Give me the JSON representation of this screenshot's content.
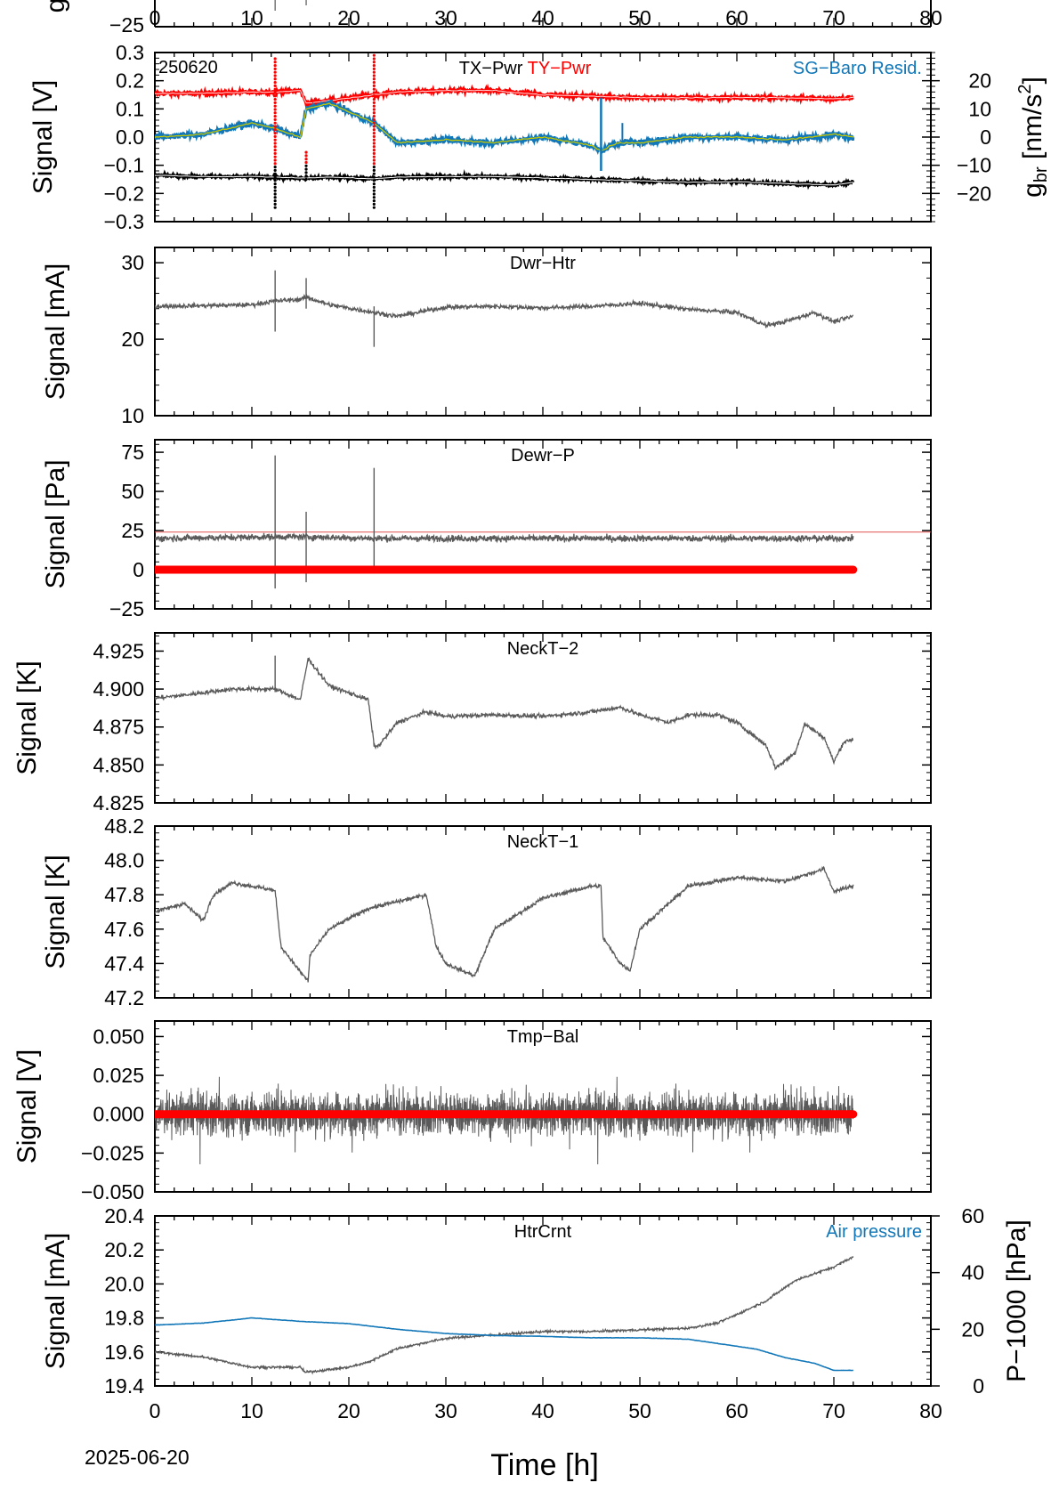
{
  "meta": {
    "date": "2025-06-20",
    "id_label": "250620"
  },
  "x_axis": {
    "label": "Time [h]",
    "ticks": [
      0,
      10,
      20,
      30,
      40,
      50,
      60,
      70,
      80
    ],
    "range": [
      0,
      80
    ]
  },
  "colors": {
    "black": "#000000",
    "gray": "#5a5a5a",
    "red": "#ff0000",
    "blue": "#1177b8",
    "yellow": "#c8c800"
  },
  "chart_data": [
    {
      "name": "top-partial",
      "type": "line",
      "ylabel": "g",
      "ylim": [
        -25,
        5
      ],
      "yticks": [
        -25
      ],
      "data_extent_h": 72
    },
    {
      "name": "tilt-power",
      "type": "line",
      "title_parts": [
        {
          "text": "TX−Pwr",
          "color": "#000000"
        },
        {
          "text": "TY−Pwr",
          "color": "#ff0000"
        }
      ],
      "id_label": "250620",
      "ylabel": "Signal [V]",
      "ylim": [
        -0.3,
        0.3
      ],
      "yticks": [
        -0.3,
        -0.2,
        -0.1,
        0.0,
        0.1,
        0.2,
        0.3
      ],
      "ytick_labels": [
        "−0.3",
        "−0.2",
        "−0.1",
        "0.0",
        "0.1",
        "0.2",
        "0.3"
      ],
      "right_axis": {
        "label_main": "g",
        "label_sub": "br",
        "label_unit": "[nm/s",
        "label_sup": "2",
        "label_close": "]",
        "ylim": [
          -30,
          30
        ],
        "yticks": [
          -20,
          -10,
          0,
          10,
          20
        ],
        "ytick_labels": [
          "−20",
          "−10",
          "0",
          "10",
          "20"
        ],
        "color": "#1177b8"
      },
      "legend_right": "SG−Baro Resid.",
      "series": [
        {
          "name": "TX−Pwr",
          "color": "#000000",
          "x": [
            0,
            5,
            10,
            12.4,
            15,
            15.6,
            18,
            22.6,
            25,
            30,
            35,
            40,
            45,
            50,
            55,
            60,
            65,
            70,
            72
          ],
          "y": [
            -0.135,
            -0.14,
            -0.14,
            -0.142,
            -0.145,
            -0.145,
            -0.142,
            -0.148,
            -0.142,
            -0.14,
            -0.14,
            -0.145,
            -0.15,
            -0.155,
            -0.16,
            -0.158,
            -0.165,
            -0.17,
            -0.16
          ]
        },
        {
          "name": "TY−Pwr",
          "color": "#ff0000",
          "x": [
            0,
            5,
            10,
            12.4,
            15,
            15.6,
            18,
            22.6,
            25,
            30,
            35,
            40,
            45,
            50,
            55,
            60,
            65,
            70,
            72
          ],
          "y": [
            0.155,
            0.155,
            0.16,
            0.16,
            0.165,
            0.12,
            0.13,
            0.15,
            0.16,
            0.165,
            0.165,
            0.15,
            0.145,
            0.14,
            0.14,
            0.14,
            0.14,
            0.135,
            0.14
          ]
        },
        {
          "name": "SG−Baro Resid.",
          "color": "#1177b8",
          "x": [
            0,
            5,
            10,
            12.4,
            15,
            15.6,
            18,
            22.6,
            25,
            30,
            35,
            40,
            45,
            46,
            47,
            48,
            50,
            55,
            60,
            65,
            70,
            72
          ],
          "y": [
            0,
            1,
            5,
            3,
            0,
            10,
            12,
            5,
            -2,
            -1,
            -2,
            0,
            -3,
            -5,
            -3,
            -2,
            -2,
            0,
            0,
            -1,
            1,
            0
          ]
        }
      ]
    },
    {
      "name": "dwr-htr",
      "type": "line",
      "title": "Dwr−Htr",
      "ylabel": "Signal [mA]",
      "ylim": [
        10,
        32
      ],
      "yticks": [
        10,
        20,
        30
      ],
      "ytick_labels": [
        "10",
        "20",
        "30"
      ],
      "series": [
        {
          "name": "Dwr−Htr",
          "color": "#5a5a5a",
          "x": [
            0,
            5,
            10,
            12.4,
            15,
            15.6,
            18,
            22.6,
            25,
            30,
            35,
            40,
            45,
            50,
            55,
            60,
            63,
            65,
            68,
            70,
            72
          ],
          "y": [
            24.3,
            24.4,
            24.5,
            25.0,
            25.2,
            25.5,
            24.5,
            23.5,
            23.0,
            24.2,
            24.3,
            24.1,
            24.3,
            24.7,
            23.9,
            23.5,
            21.8,
            22.3,
            23.5,
            22.3,
            23.0
          ]
        }
      ]
    },
    {
      "name": "dewr-p",
      "type": "line",
      "title": "Dewr−P",
      "ylabel": "Signal [Pa]",
      "ylim": [
        -25,
        83
      ],
      "yticks": [
        -25,
        0,
        25,
        50,
        75
      ],
      "ytick_labels": [
        "−25",
        "0",
        "25",
        "50",
        "75"
      ],
      "reference_line": 24,
      "series": [
        {
          "name": "Dewr−P",
          "color": "#5a5a5a",
          "x": [
            0,
            12.4,
            15.6,
            22.6,
            30,
            40,
            50,
            60,
            72
          ],
          "y": [
            20,
            21,
            21,
            20,
            20,
            20,
            20,
            20,
            20
          ]
        },
        {
          "name": "zero",
          "color": "#ff0000",
          "x": [
            0,
            72
          ],
          "y": [
            0,
            0
          ]
        }
      ]
    },
    {
      "name": "neckt-2",
      "type": "line",
      "title": "NeckT−2",
      "ylabel": "Signal [K]",
      "ylim": [
        4.825,
        4.937
      ],
      "yticks": [
        4.825,
        4.85,
        4.875,
        4.9,
        4.925
      ],
      "ytick_labels": [
        "4.825",
        "4.850",
        "4.875",
        "4.900",
        "4.925"
      ],
      "series": [
        {
          "name": "NeckT−2",
          "color": "#5a5a5a",
          "x": [
            0,
            3,
            8,
            12,
            12.4,
            15,
            15.8,
            18,
            22,
            22.6,
            23,
            25,
            28,
            30,
            35,
            40,
            45,
            48,
            50,
            53,
            55,
            58,
            60,
            63,
            64,
            66,
            67,
            69,
            70,
            71,
            72
          ],
          "y": [
            4.894,
            4.896,
            4.9,
            4.9,
            4.9,
            4.893,
            4.92,
            4.902,
            4.893,
            4.863,
            4.862,
            4.878,
            4.885,
            4.882,
            4.883,
            4.882,
            4.885,
            4.888,
            4.883,
            4.878,
            4.883,
            4.883,
            4.878,
            4.863,
            4.848,
            4.858,
            4.877,
            4.868,
            4.852,
            4.865,
            4.867
          ]
        }
      ]
    },
    {
      "name": "neckt-1",
      "type": "line",
      "title": "NeckT−1",
      "ylabel": "Signal [K]",
      "ylim": [
        47.2,
        48.2
      ],
      "yticks": [
        47.2,
        47.4,
        47.6,
        47.8,
        48.0,
        48.2
      ],
      "ytick_labels": [
        "47.2",
        "47.4",
        "47.6",
        "47.8",
        "48.0",
        "48.2"
      ],
      "series": [
        {
          "name": "NeckT−1",
          "color": "#5a5a5a",
          "x": [
            0,
            3,
            5,
            6,
            8,
            12,
            12.4,
            13,
            15,
            15.8,
            16,
            18,
            22,
            28,
            29,
            30,
            32,
            33,
            35,
            40,
            45,
            46,
            46.2,
            48,
            49,
            50,
            52,
            55,
            60,
            65,
            69,
            70,
            72
          ],
          "y": [
            47.7,
            47.75,
            47.65,
            47.8,
            47.87,
            47.83,
            47.82,
            47.5,
            47.35,
            47.3,
            47.45,
            47.6,
            47.72,
            47.8,
            47.5,
            47.4,
            47.35,
            47.33,
            47.6,
            47.78,
            47.85,
            47.85,
            47.55,
            47.4,
            47.36,
            47.6,
            47.7,
            47.85,
            47.9,
            47.88,
            47.95,
            47.82,
            47.85
          ]
        }
      ]
    },
    {
      "name": "tmp-bal",
      "type": "line",
      "title": "Tmp−Bal",
      "ylabel": "Signal [V]",
      "ylim": [
        -0.05,
        0.06
      ],
      "yticks": [
        -0.05,
        -0.025,
        0.0,
        0.025,
        0.05
      ],
      "ytick_labels": [
        "−0.050",
        "−0.025",
        "0.000",
        "0.025",
        "0.050"
      ],
      "noise_band": [
        -0.025,
        0.025
      ],
      "series": [
        {
          "name": "Tmp−Bal",
          "color": "#5a5a5a",
          "x": [
            0,
            72
          ],
          "y": [
            0,
            0
          ]
        },
        {
          "name": "zero",
          "color": "#ff0000",
          "x": [
            0,
            72
          ],
          "y": [
            0,
            0
          ]
        }
      ]
    },
    {
      "name": "htrcrnt",
      "type": "line",
      "title": "HtrCrnt",
      "ylabel": "Signal [mA]",
      "ylim": [
        19.4,
        20.4
      ],
      "yticks": [
        19.4,
        19.6,
        19.8,
        20.0,
        20.2,
        20.4
      ],
      "ytick_labels": [
        "19.4",
        "19.6",
        "19.8",
        "20.0",
        "20.2",
        "20.4"
      ],
      "right_axis": {
        "label": "P−1000 [hPa]",
        "ylim": [
          0,
          60
        ],
        "yticks": [
          0,
          20,
          40,
          60
        ],
        "ytick_labels": [
          "0",
          "20",
          "40",
          "60"
        ],
        "color": "#1177b8"
      },
      "legend_right": "Air pressure",
      "series": [
        {
          "name": "HtrCrnt",
          "color": "#5a5a5a",
          "x": [
            0,
            5,
            10,
            15,
            15.5,
            20,
            22,
            25,
            30,
            35,
            40,
            45,
            50,
            55,
            58,
            60,
            63,
            66,
            70,
            72
          ],
          "y": [
            19.6,
            19.57,
            19.51,
            19.51,
            19.48,
            19.51,
            19.54,
            19.62,
            19.68,
            19.7,
            19.72,
            19.72,
            19.73,
            19.74,
            19.77,
            19.82,
            19.9,
            20.02,
            20.1,
            20.16
          ]
        },
        {
          "name": "Air pressure",
          "color": "#1177b8",
          "axis": "right",
          "x": [
            0,
            5,
            10,
            15,
            20,
            25,
            30,
            35,
            40,
            45,
            50,
            55,
            60,
            62,
            65,
            68,
            70,
            72
          ],
          "y": [
            21.5,
            22.2,
            24,
            22.8,
            22,
            20,
            18.5,
            17.8,
            17.5,
            17,
            17,
            16.5,
            14,
            13,
            10,
            8,
            5.5,
            5.5
          ]
        }
      ]
    }
  ]
}
